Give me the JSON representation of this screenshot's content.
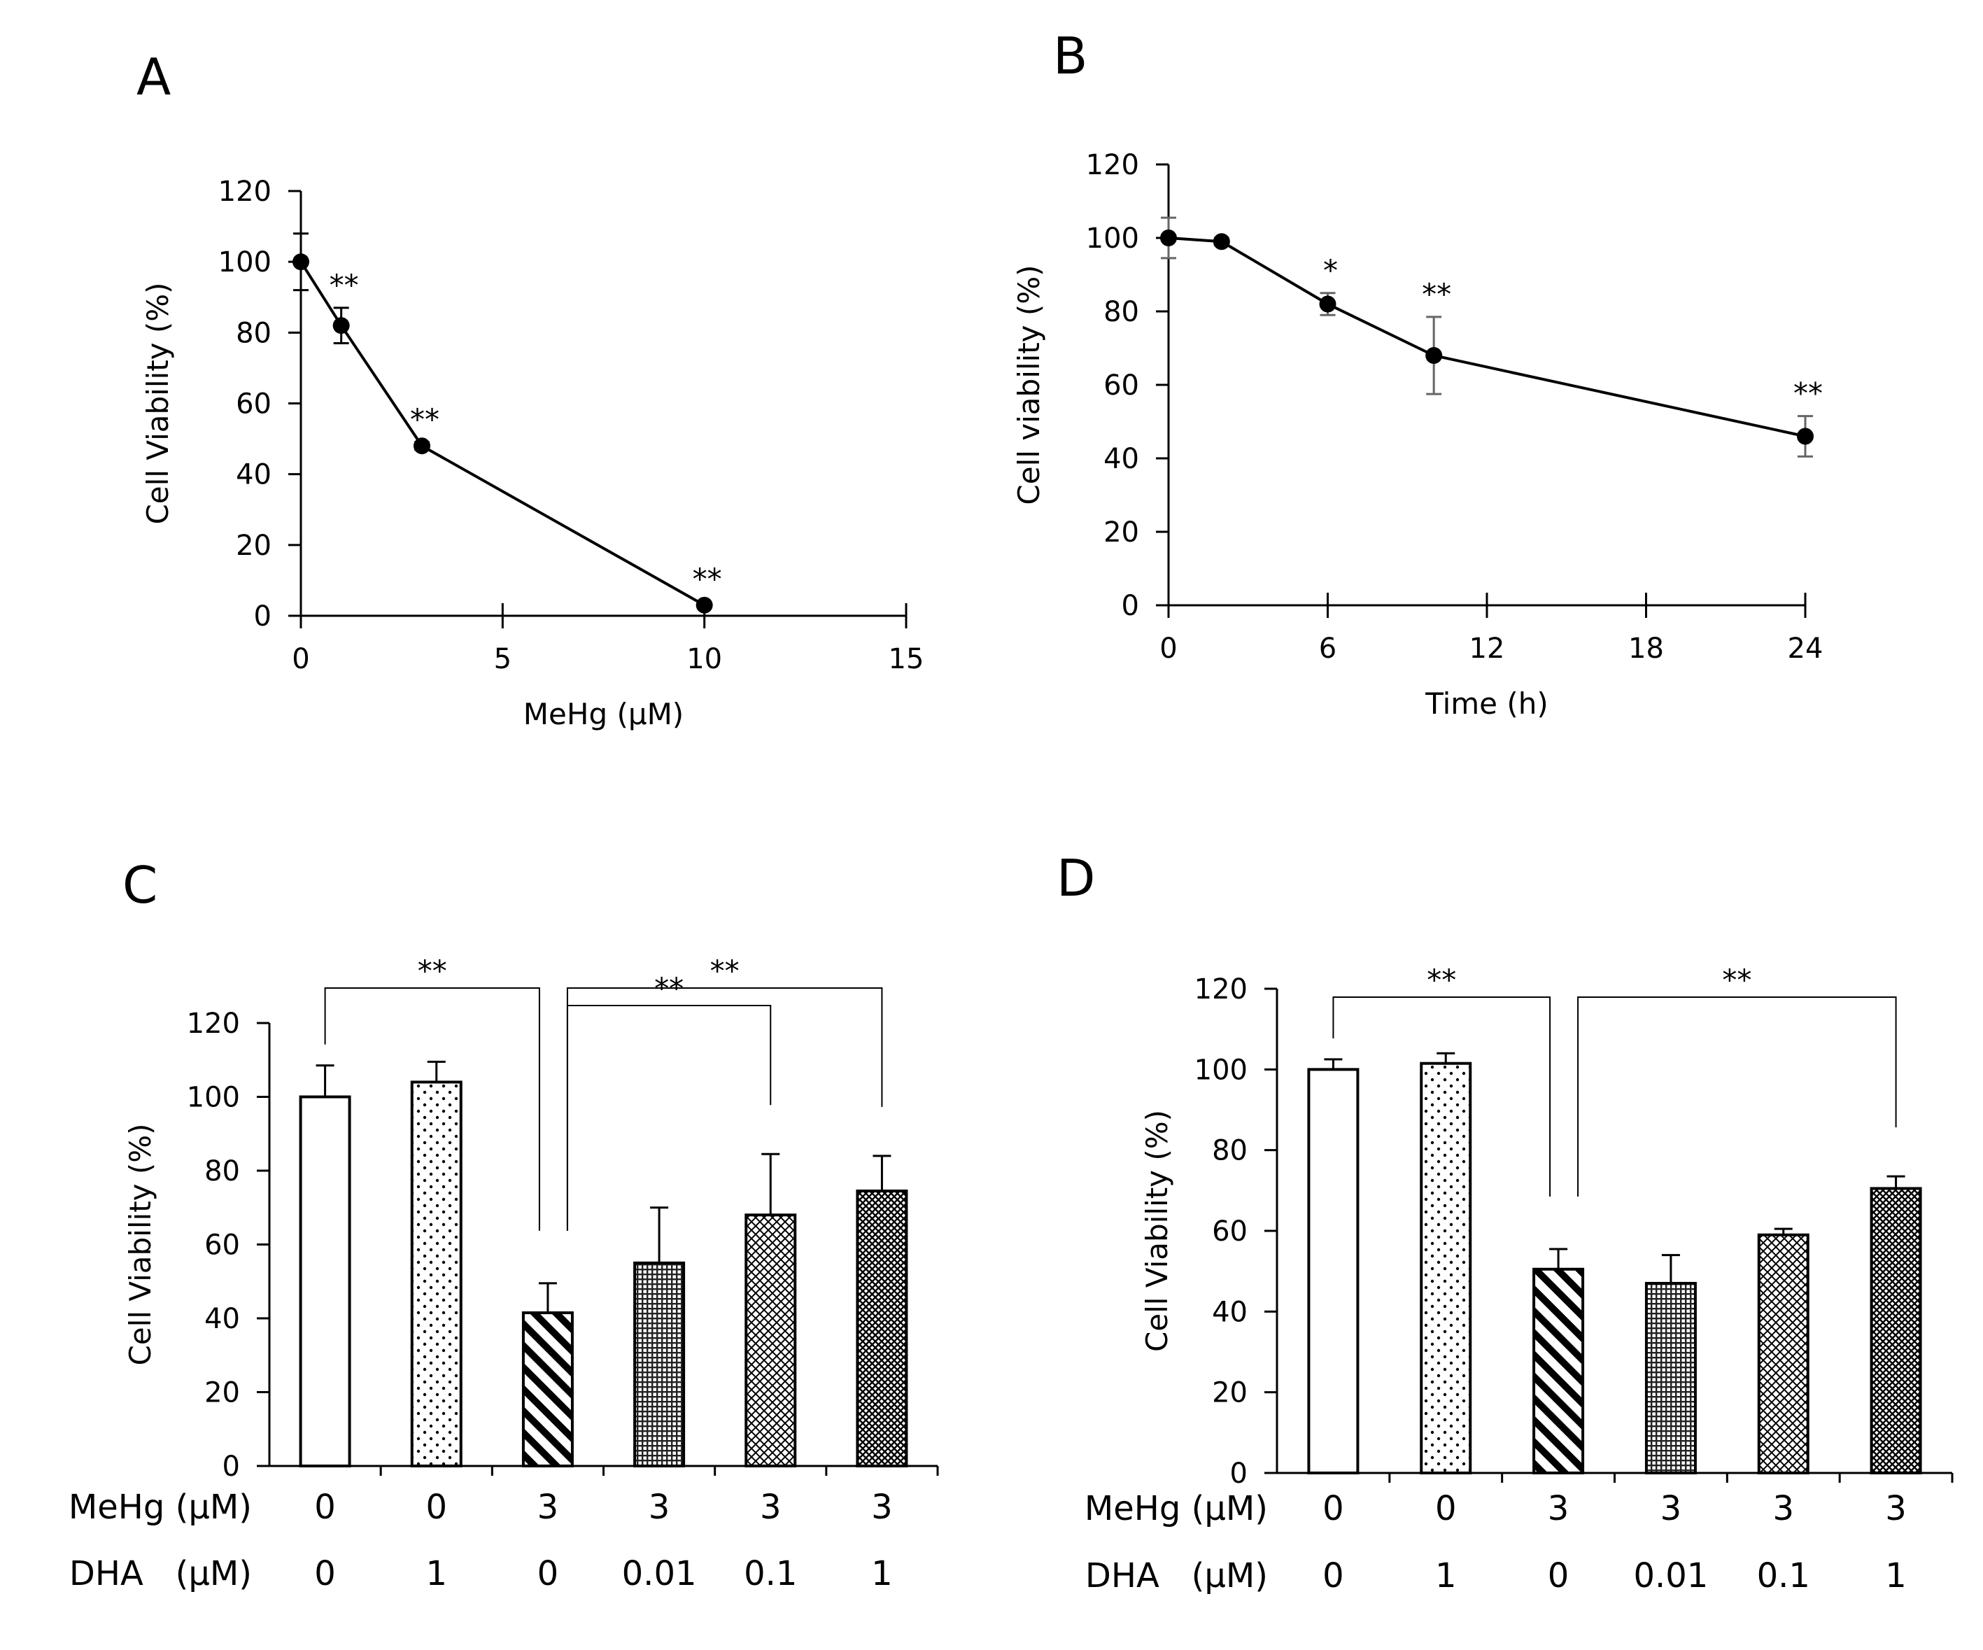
{
  "chart_data": [
    {
      "panel": "A",
      "type": "line",
      "xlabel": "MeHg (μM)",
      "ylabel": "Cell Viability (%)",
      "xlim": [
        0,
        15
      ],
      "ylim": [
        0,
        120
      ],
      "xticks": [
        "0",
        "5",
        "10",
        "15"
      ],
      "yticks": [
        "0",
        "20",
        "40",
        "60",
        "80",
        "100",
        "120"
      ],
      "series": [
        {
          "name": "Cell Viability",
          "x": [
            0,
            1,
            3,
            10
          ],
          "values": [
            100,
            82,
            48,
            3
          ],
          "error": [
            8,
            5,
            1,
            0.5
          ],
          "significance": [
            "",
            "**",
            "**",
            "**"
          ]
        }
      ]
    },
    {
      "panel": "B",
      "type": "line",
      "xlabel": "Time (h)",
      "ylabel": "Cell viability (%)",
      "xlim": [
        0,
        24
      ],
      "ylim": [
        0,
        120
      ],
      "xticks": [
        "0",
        "6",
        "12",
        "18",
        "24"
      ],
      "yticks": [
        "0",
        "20",
        "40",
        "60",
        "80",
        "100",
        "120"
      ],
      "series": [
        {
          "name": "Cell viability",
          "x": [
            0,
            2,
            6,
            10,
            24
          ],
          "values": [
            100,
            99,
            82,
            68,
            46
          ],
          "error": [
            5.5,
            1,
            3,
            10.5,
            5.5
          ],
          "significance": [
            "",
            "",
            "*",
            "**",
            "**"
          ]
        }
      ]
    },
    {
      "panel": "C",
      "type": "bar",
      "ylabel": "Cell Viability (%)",
      "ylim": [
        0,
        120
      ],
      "yticks": [
        "0",
        "20",
        "40",
        "60",
        "80",
        "100",
        "120"
      ],
      "row_labels": [
        "MeHg (μM)",
        "DHA   (μM)"
      ],
      "mehg": [
        "0",
        "0",
        "3",
        "3",
        "3",
        "3"
      ],
      "dha": [
        "0",
        "1",
        "0",
        "0.01",
        "0.1",
        "1"
      ],
      "patterns": [
        "open",
        "dots",
        "diagonal",
        "fine-grid",
        "crosshatch",
        "dense-crosshatch"
      ],
      "values": [
        100,
        104,
        41.5,
        55,
        68,
        74.5
      ],
      "error": [
        8.5,
        5.5,
        8,
        15,
        16.5,
        9.5
      ],
      "comparisons": [
        {
          "from": 0,
          "to": 2,
          "label": "**",
          "level": 1
        },
        {
          "from": 2,
          "to": 5,
          "label": "**",
          "level": 1
        },
        {
          "from": 2,
          "to": 4,
          "label": "**",
          "level": 0
        }
      ]
    },
    {
      "panel": "D",
      "type": "bar",
      "ylabel": "Cell Viability (%)",
      "ylim": [
        0,
        120
      ],
      "yticks": [
        "0",
        "20",
        "40",
        "60",
        "80",
        "100",
        "120"
      ],
      "row_labels": [
        "MeHg (μM)",
        "DHA   (μM)"
      ],
      "mehg": [
        "0",
        "0",
        "3",
        "3",
        "3",
        "3"
      ],
      "dha": [
        "0",
        "1",
        "0",
        "0.01",
        "0.1",
        "1"
      ],
      "patterns": [
        "open",
        "dots",
        "diagonal",
        "fine-grid",
        "crosshatch",
        "dense-crosshatch"
      ],
      "values": [
        100,
        101.5,
        50.5,
        47,
        59,
        70.5
      ],
      "error": [
        2.5,
        2.5,
        5,
        7,
        1.5,
        3
      ],
      "comparisons": [
        {
          "from": 0,
          "to": 2,
          "label": "**",
          "level": 0
        },
        {
          "from": 2,
          "to": 5,
          "label": "**",
          "level": 0
        }
      ]
    }
  ]
}
